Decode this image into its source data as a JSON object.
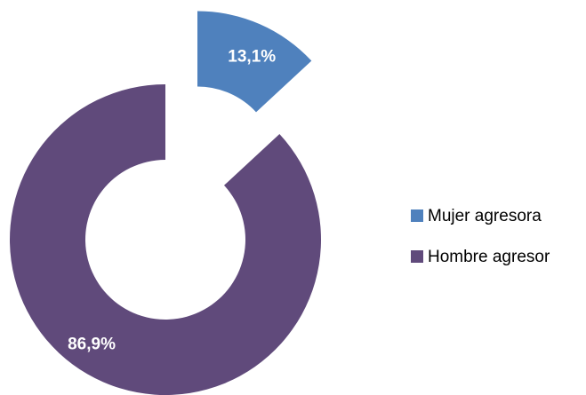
{
  "chart_data": {
    "type": "pie",
    "categories": [
      "Mujer agresora",
      "Hombre agresor"
    ],
    "values": [
      13.1,
      86.9
    ],
    "value_labels": [
      "13,1%",
      "86,9%"
    ],
    "colors": [
      "#4f81bd",
      "#604a7b"
    ]
  }
}
